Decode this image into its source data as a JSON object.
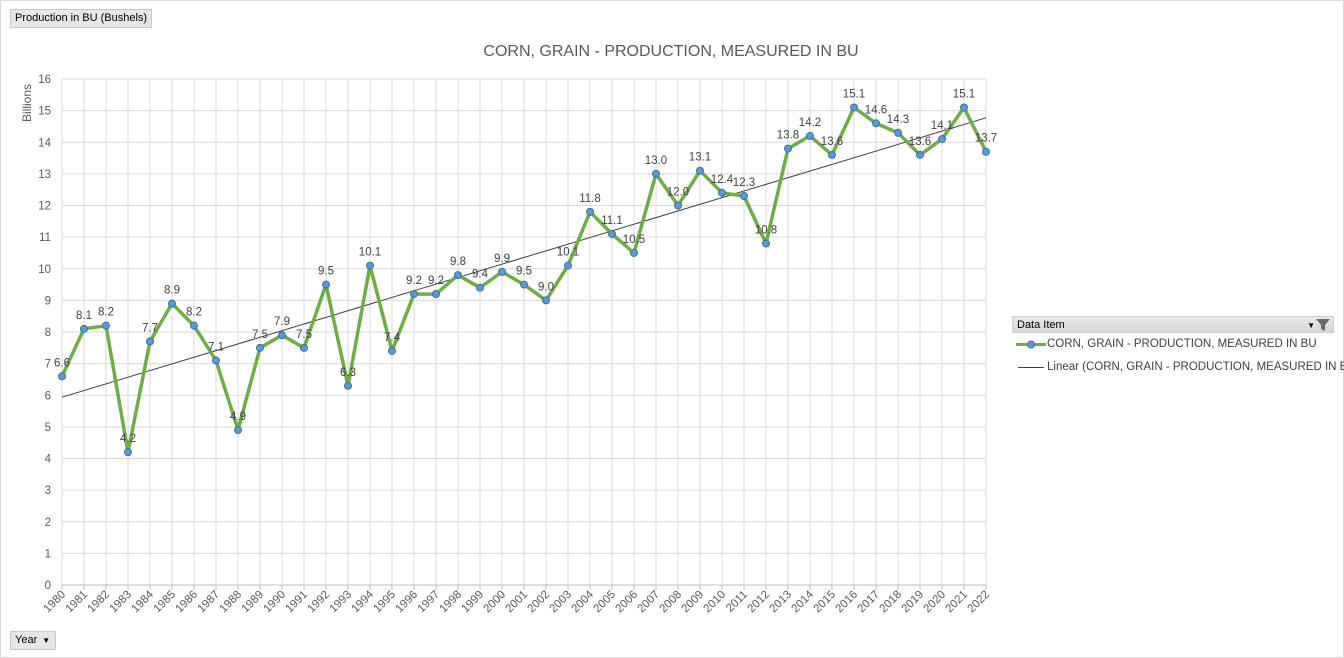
{
  "value_field_label": "Production in BU (Bushels)",
  "axis_field_label": "Year",
  "axis_field_dropdown": "chevron-down-icon",
  "legend": {
    "header": "Data Item",
    "series_label": "CORN, GRAIN - PRODUCTION, MEASURED IN BU",
    "trend_label": "Linear (CORN, GRAIN - PRODUCTION, MEASURED IN BU)"
  },
  "colors": {
    "series": "#70ad47",
    "marker": "#5b9bd5",
    "trend": "#404040",
    "grid": "#d9d9d9"
  },
  "chart_data": {
    "type": "line",
    "title": "CORN, GRAIN - PRODUCTION, MEASURED IN BU",
    "ylabel": "Billions",
    "xlabel": "",
    "ylim": [
      0,
      16
    ],
    "yticks": [
      0,
      1,
      2,
      3,
      4,
      5,
      6,
      7,
      8,
      9,
      10,
      11,
      12,
      13,
      14,
      15,
      16
    ],
    "grid": true,
    "legend_position": "right",
    "trendline": {
      "type": "linear",
      "name": "Linear (CORN, GRAIN - PRODUCTION, MEASURED IN BU)"
    },
    "categories": [
      "1980",
      "1981",
      "1982",
      "1983",
      "1984",
      "1985",
      "1986",
      "1987",
      "1988",
      "1989",
      "1990",
      "1991",
      "1992",
      "1993",
      "1994",
      "1995",
      "1996",
      "1997",
      "1998",
      "1999",
      "2000",
      "2001",
      "2002",
      "2003",
      "2004",
      "2005",
      "2006",
      "2007",
      "2008",
      "2009",
      "2010",
      "2011",
      "2012",
      "2013",
      "2014",
      "2015",
      "2016",
      "2017",
      "2018",
      "2019",
      "2020",
      "2021",
      "2022"
    ],
    "series": [
      {
        "name": "CORN, GRAIN - PRODUCTION, MEASURED IN BU",
        "values": [
          6.6,
          8.1,
          8.2,
          4.2,
          7.7,
          8.9,
          8.2,
          7.1,
          4.9,
          7.5,
          7.9,
          7.5,
          9.5,
          6.3,
          10.1,
          7.4,
          9.2,
          9.2,
          9.8,
          9.4,
          9.9,
          9.5,
          9.0,
          10.1,
          11.8,
          11.1,
          10.5,
          13.0,
          12.0,
          13.1,
          12.4,
          12.3,
          10.8,
          13.8,
          14.2,
          13.6,
          15.1,
          14.6,
          14.3,
          13.6,
          14.1,
          15.1,
          13.7
        ]
      }
    ]
  }
}
